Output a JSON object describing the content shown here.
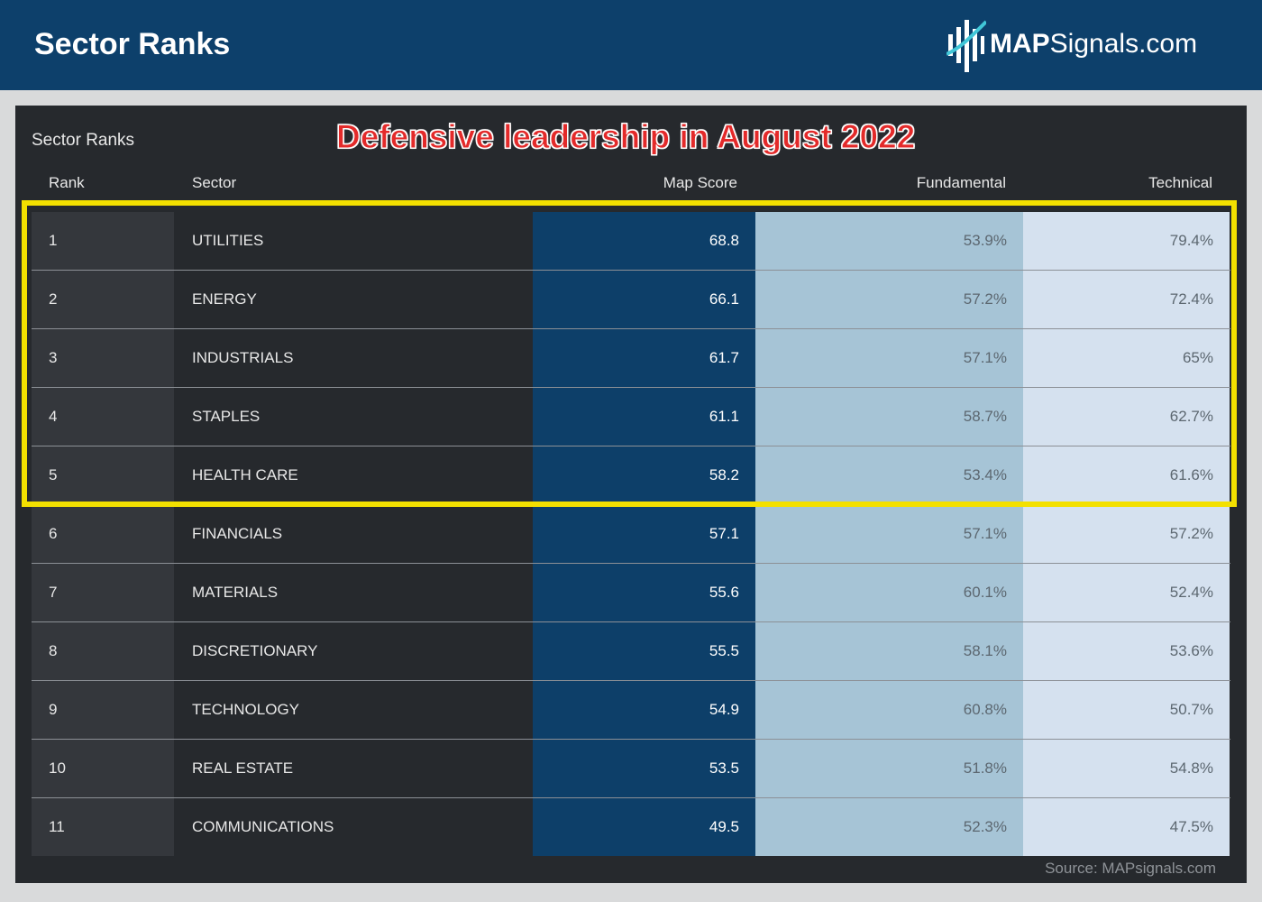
{
  "banner": {
    "title": "Sector Ranks",
    "logo_bold": "MAP",
    "logo_rest": "Signals.com",
    "logo_icon": "mapsignals-logo-icon"
  },
  "panel": {
    "title": "Sector Ranks",
    "headline": "Defensive leadership in August 2022",
    "source": "Source: MAPsignals.com"
  },
  "columns": {
    "rank": "Rank",
    "sector": "Sector",
    "map_score": "Map Score",
    "fundamental": "Fundamental",
    "technical": "Technical"
  },
  "rows": [
    {
      "rank": "1",
      "sector": "UTILITIES",
      "map_score": "68.8",
      "fundamental": "53.9%",
      "technical": "79.4%"
    },
    {
      "rank": "2",
      "sector": "ENERGY",
      "map_score": "66.1",
      "fundamental": "57.2%",
      "technical": "72.4%"
    },
    {
      "rank": "3",
      "sector": "INDUSTRIALS",
      "map_score": "61.7",
      "fundamental": "57.1%",
      "technical": "65%"
    },
    {
      "rank": "4",
      "sector": "STAPLES",
      "map_score": "61.1",
      "fundamental": "58.7%",
      "technical": "62.7%"
    },
    {
      "rank": "5",
      "sector": "HEALTH CARE",
      "map_score": "58.2",
      "fundamental": "53.4%",
      "technical": "61.6%"
    },
    {
      "rank": "6",
      "sector": "FINANCIALS",
      "map_score": "57.1",
      "fundamental": "57.1%",
      "technical": "57.2%"
    },
    {
      "rank": "7",
      "sector": "MATERIALS",
      "map_score": "55.6",
      "fundamental": "60.1%",
      "technical": "52.4%"
    },
    {
      "rank": "8",
      "sector": "DISCRETIONARY",
      "map_score": "55.5",
      "fundamental": "58.1%",
      "technical": "53.6%"
    },
    {
      "rank": "9",
      "sector": "TECHNOLOGY",
      "map_score": "54.9",
      "fundamental": "60.8%",
      "technical": "50.7%"
    },
    {
      "rank": "10",
      "sector": "REAL ESTATE",
      "map_score": "53.5",
      "fundamental": "51.8%",
      "technical": "54.8%"
    },
    {
      "rank": "11",
      "sector": "COMMUNICATIONS",
      "map_score": "49.5",
      "fundamental": "52.3%",
      "technical": "47.5%"
    }
  ],
  "highlight_color": "#f3e000",
  "colors": {
    "banner": "#0d406b",
    "map_score_column": "#0d3f69",
    "fundamental_column": "#a6c4d6",
    "technical_column": "#d5e1ef",
    "headline": "#e32a2a"
  }
}
